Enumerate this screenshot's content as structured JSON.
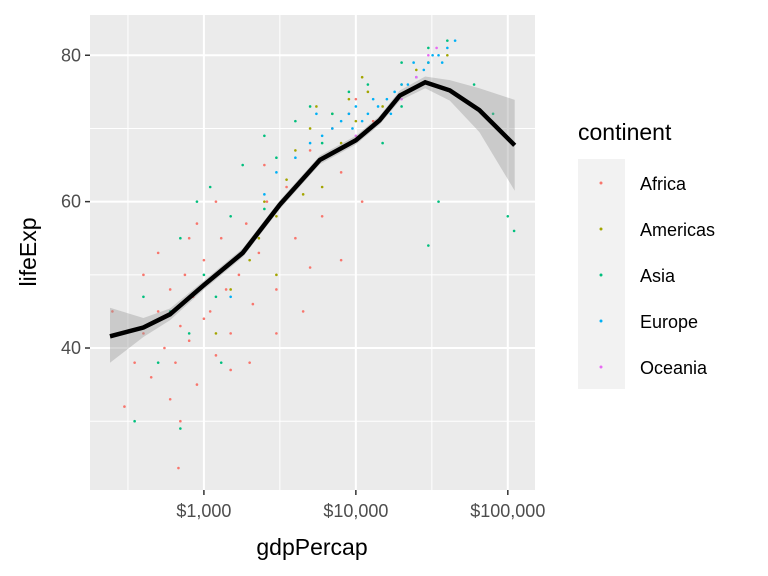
{
  "chart_data": {
    "type": "scatter",
    "title": "",
    "xlabel": "gdpPercap",
    "ylabel": "lifeExp",
    "x_scale": "log10",
    "xlim": [
      178,
      151000
    ],
    "ylim": [
      20.6,
      85.5
    ],
    "x_ticks": [
      1000,
      10000,
      100000
    ],
    "x_tick_labels": [
      "$1,000",
      "$10,000",
      "$100,000"
    ],
    "y_ticks": [
      40,
      60,
      80
    ],
    "y_tick_labels": [
      "40",
      "60",
      "80"
    ],
    "grid": true,
    "legend": {
      "title": "continent",
      "placement": "right",
      "entries": [
        "Africa",
        "Americas",
        "Asia",
        "Europe",
        "Oceania"
      ],
      "colors": [
        "#F8766D",
        "#A3A500",
        "#00BF7D",
        "#00B0F6",
        "#E76BF3"
      ]
    },
    "series": [
      {
        "name": "Africa",
        "points": [
          [
            300,
            32
          ],
          [
            350,
            38
          ],
          [
            400,
            42
          ],
          [
            450,
            36
          ],
          [
            500,
            45
          ],
          [
            550,
            40
          ],
          [
            600,
            48
          ],
          [
            650,
            38
          ],
          [
            700,
            43
          ],
          [
            750,
            50
          ],
          [
            800,
            41
          ],
          [
            850,
            47
          ],
          [
            900,
            35
          ],
          [
            1000,
            52
          ],
          [
            1100,
            45
          ],
          [
            1200,
            39
          ],
          [
            1300,
            55
          ],
          [
            1400,
            48
          ],
          [
            1500,
            42
          ],
          [
            1700,
            50
          ],
          [
            1900,
            57
          ],
          [
            2100,
            46
          ],
          [
            2300,
            53
          ],
          [
            2600,
            60
          ],
          [
            3000,
            48
          ],
          [
            3500,
            62
          ],
          [
            4000,
            55
          ],
          [
            4500,
            45
          ],
          [
            5000,
            67
          ],
          [
            6000,
            58
          ],
          [
            7000,
            70
          ],
          [
            8000,
            52
          ],
          [
            9000,
            72
          ],
          [
            11000,
            60
          ],
          [
            13000,
            71
          ],
          [
            600,
            33
          ],
          [
            800,
            55
          ],
          [
            1000,
            44
          ],
          [
            400,
            50
          ],
          [
            700,
            30
          ],
          [
            1200,
            60
          ],
          [
            2000,
            38
          ],
          [
            3000,
            42
          ],
          [
            5000,
            51
          ],
          [
            10000,
            74
          ],
          [
            500,
            53
          ],
          [
            900,
            57
          ],
          [
            1500,
            37
          ],
          [
            2500,
            65
          ],
          [
            8000,
            64
          ],
          [
            680,
            23.6
          ],
          [
            250,
            45
          ]
        ]
      },
      {
        "name": "Americas",
        "points": [
          [
            1200,
            42
          ],
          [
            1500,
            48
          ],
          [
            2000,
            52
          ],
          [
            2300,
            55
          ],
          [
            2500,
            60
          ],
          [
            3000,
            58
          ],
          [
            3500,
            63
          ],
          [
            4000,
            67
          ],
          [
            4500,
            61
          ],
          [
            5000,
            70
          ],
          [
            6000,
            66
          ],
          [
            7000,
            72
          ],
          [
            8000,
            68
          ],
          [
            9000,
            74
          ],
          [
            10000,
            71
          ],
          [
            12000,
            75
          ],
          [
            15000,
            73
          ],
          [
            20000,
            76
          ],
          [
            25000,
            78
          ],
          [
            30000,
            79
          ],
          [
            40000,
            80
          ],
          [
            3000,
            50
          ],
          [
            6000,
            62
          ],
          [
            11000,
            77
          ],
          [
            5500,
            73
          ]
        ]
      },
      {
        "name": "Asia",
        "points": [
          [
            350,
            30
          ],
          [
            500,
            38
          ],
          [
            600,
            45
          ],
          [
            700,
            55
          ],
          [
            800,
            42
          ],
          [
            900,
            60
          ],
          [
            1000,
            50
          ],
          [
            1100,
            62
          ],
          [
            1200,
            47
          ],
          [
            1500,
            58
          ],
          [
            1800,
            65
          ],
          [
            2000,
            54
          ],
          [
            2500,
            69
          ],
          [
            3000,
            66
          ],
          [
            4000,
            71
          ],
          [
            5000,
            73
          ],
          [
            7000,
            72
          ],
          [
            9000,
            75
          ],
          [
            12000,
            76
          ],
          [
            20000,
            79
          ],
          [
            30000,
            81
          ],
          [
            40000,
            82
          ],
          [
            60000,
            76
          ],
          [
            100000,
            58
          ],
          [
            110000,
            56
          ],
          [
            80000,
            72
          ],
          [
            35000,
            60
          ],
          [
            30000,
            54
          ],
          [
            15000,
            68
          ],
          [
            700,
            29
          ],
          [
            400,
            47
          ],
          [
            1300,
            38
          ],
          [
            2500,
            59
          ],
          [
            6000,
            68
          ],
          [
            20000,
            73
          ]
        ]
      },
      {
        "name": "Europe",
        "points": [
          [
            1500,
            47
          ],
          [
            2500,
            61
          ],
          [
            3000,
            64
          ],
          [
            4000,
            66
          ],
          [
            5000,
            68
          ],
          [
            6000,
            69
          ],
          [
            7000,
            70
          ],
          [
            8000,
            71
          ],
          [
            9000,
            72
          ],
          [
            10000,
            73
          ],
          [
            11000,
            71
          ],
          [
            12000,
            72
          ],
          [
            14000,
            73
          ],
          [
            16000,
            74
          ],
          [
            18000,
            75
          ],
          [
            20000,
            76
          ],
          [
            22000,
            76
          ],
          [
            25000,
            77
          ],
          [
            28000,
            78
          ],
          [
            30000,
            79
          ],
          [
            32000,
            80
          ],
          [
            35000,
            80
          ],
          [
            40000,
            81
          ],
          [
            45000,
            82
          ],
          [
            5500,
            72
          ],
          [
            9500,
            70
          ],
          [
            13000,
            74
          ],
          [
            17000,
            72
          ],
          [
            24000,
            79
          ],
          [
            37000,
            79
          ]
        ]
      },
      {
        "name": "Oceania",
        "points": [
          [
            10000,
            69
          ],
          [
            14000,
            71
          ],
          [
            20000,
            74
          ],
          [
            25000,
            77
          ],
          [
            30000,
            80
          ],
          [
            34000,
            81
          ]
        ]
      }
    ],
    "smooth": {
      "method": "gam",
      "points": [
        [
          241,
          41.6,
          38,
          45.5
        ],
        [
          400,
          42.8,
          41.5,
          44.1
        ],
        [
          598,
          44.6,
          43.8,
          45.4
        ],
        [
          1000,
          48.6,
          48,
          49.2
        ],
        [
          1800,
          53,
          52.4,
          53.6
        ],
        [
          3162,
          59.6,
          59,
          60.2
        ],
        [
          5800,
          65.7,
          65.1,
          66.3
        ],
        [
          10000,
          68.4,
          67.8,
          69
        ],
        [
          14300,
          71.1,
          70.5,
          71.7
        ],
        [
          19500,
          74.5,
          73.8,
          75.2
        ],
        [
          28600,
          76.3,
          75.5,
          77.1
        ],
        [
          41500,
          75.2,
          73.8,
          76.6
        ],
        [
          65000,
          72.5,
          69.5,
          75.5
        ],
        [
          111000,
          67.7,
          61.5,
          73.9
        ]
      ]
    }
  }
}
